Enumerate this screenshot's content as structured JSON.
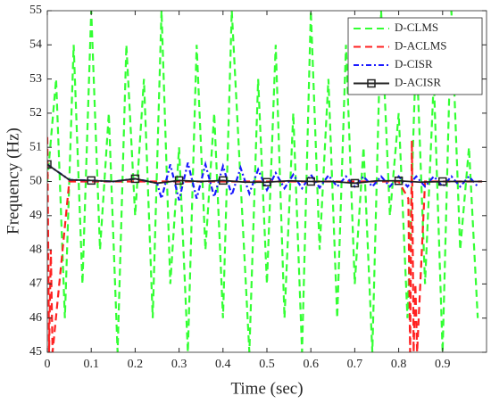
{
  "chart_data": {
    "type": "line",
    "xlabel": "Time (sec)",
    "ylabel": "Frequency (Hz)",
    "xlim": [
      0,
      1
    ],
    "ylim": [
      45,
      55
    ],
    "xticks": [
      0,
      0.1,
      0.2,
      0.3,
      0.4,
      0.5,
      0.6,
      0.7,
      0.8,
      0.9
    ],
    "yticks": [
      45,
      46,
      47,
      48,
      49,
      50,
      51,
      52,
      53,
      54,
      55
    ],
    "legend": "upper right",
    "series": [
      {
        "name": "D-CLMS",
        "color": "#33ff33",
        "style": "dashed",
        "x": [
          0,
          0.02,
          0.04,
          0.06,
          0.08,
          0.1,
          0.12,
          0.14,
          0.16,
          0.18,
          0.2,
          0.22,
          0.24,
          0.26,
          0.28,
          0.3,
          0.32,
          0.34,
          0.36,
          0.38,
          0.4,
          0.42,
          0.44,
          0.46,
          0.48,
          0.5,
          0.52,
          0.54,
          0.56,
          0.58,
          0.6,
          0.62,
          0.64,
          0.66,
          0.68,
          0.7,
          0.72,
          0.74,
          0.76,
          0.78,
          0.8,
          0.82,
          0.84,
          0.86,
          0.88,
          0.9,
          0.92,
          0.94,
          0.96,
          0.98
        ],
        "values": [
          50,
          53,
          46,
          54,
          47,
          55,
          48,
          52,
          45,
          54,
          49,
          53,
          46,
          55,
          47,
          51,
          45,
          54,
          48,
          52,
          46,
          55,
          50,
          45,
          53,
          47,
          54,
          46,
          52,
          45,
          55,
          48,
          53,
          46,
          54,
          47,
          51,
          45,
          55,
          49,
          52,
          46,
          54,
          47,
          53,
          45,
          55,
          48,
          51,
          46
        ]
      },
      {
        "name": "D-ACLMS",
        "color": "#ff2222",
        "style": "dashed",
        "x": [
          0,
          0.004,
          0.008,
          0.012,
          0.05,
          0.2,
          0.4,
          0.6,
          0.8,
          0.822,
          0.826,
          0.83,
          0.834,
          0.838,
          0.842,
          0.86,
          0.99
        ],
        "values": [
          51.3,
          45,
          48,
          45,
          50,
          50,
          50,
          50,
          50,
          49.5,
          45,
          51.2,
          45,
          47,
          45,
          50,
          50
        ]
      },
      {
        "name": "D-CISR",
        "color": "#1a1aff",
        "style": "dashdot",
        "x": [
          0,
          0.05,
          0.1,
          0.15,
          0.2,
          0.25,
          0.26,
          0.28,
          0.3,
          0.32,
          0.34,
          0.36,
          0.38,
          0.4,
          0.42,
          0.44,
          0.46,
          0.48,
          0.5,
          0.52,
          0.54,
          0.56,
          0.58,
          0.6,
          0.62,
          0.64,
          0.66,
          0.68,
          0.7,
          0.72,
          0.74,
          0.76,
          0.78,
          0.8,
          0.82,
          0.84,
          0.86,
          0.88,
          0.9,
          0.92,
          0.94,
          0.96,
          0.98
        ],
        "values": [
          50.5,
          50.05,
          50.03,
          50.0,
          50.08,
          49.95,
          49.5,
          50.5,
          49.45,
          50.55,
          49.5,
          50.5,
          49.55,
          50.45,
          49.6,
          50.4,
          49.65,
          50.35,
          49.75,
          50.25,
          49.8,
          50.2,
          49.8,
          50.2,
          49.82,
          50.18,
          49.85,
          50.15,
          49.85,
          50.15,
          49.85,
          50.15,
          49.85,
          50.15,
          49.85,
          50.15,
          49.85,
          50.15,
          49.85,
          50.15,
          49.85,
          50.15,
          49.85
        ]
      },
      {
        "name": "D-ACISR",
        "color": "#222222",
        "style": "solid",
        "marker": "square",
        "x": [
          0,
          0.05,
          0.1,
          0.15,
          0.2,
          0.25,
          0.3,
          0.35,
          0.4,
          0.45,
          0.5,
          0.55,
          0.6,
          0.65,
          0.7,
          0.75,
          0.8,
          0.85,
          0.9,
          0.95,
          0.99
        ],
        "values": [
          50.5,
          50.05,
          50.03,
          50.0,
          50.08,
          49.95,
          50.03,
          50.0,
          50.03,
          49.98,
          49.98,
          50.02,
          50.0,
          50.0,
          49.95,
          50.02,
          50.02,
          49.98,
          50.0,
          50.0,
          50.0
        ]
      }
    ]
  }
}
